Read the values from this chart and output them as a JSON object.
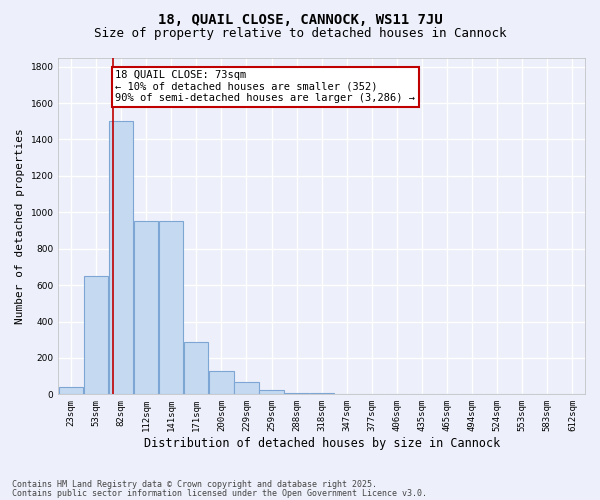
{
  "title1": "18, QUAIL CLOSE, CANNOCK, WS11 7JU",
  "title2": "Size of property relative to detached houses in Cannock",
  "xlabel": "Distribution of detached houses by size in Cannock",
  "ylabel": "Number of detached properties",
  "bins": [
    "23sqm",
    "53sqm",
    "82sqm",
    "112sqm",
    "141sqm",
    "171sqm",
    "200sqm",
    "229sqm",
    "259sqm",
    "288sqm",
    "318sqm",
    "347sqm",
    "377sqm",
    "406sqm",
    "435sqm",
    "465sqm",
    "494sqm",
    "524sqm",
    "553sqm",
    "583sqm",
    "612sqm"
  ],
  "values": [
    40,
    650,
    1500,
    950,
    950,
    290,
    130,
    65,
    25,
    10,
    5,
    2,
    1,
    0,
    0,
    0,
    0,
    0,
    0,
    0,
    0
  ],
  "bar_color": "#c5d9f1",
  "bar_edge_color": "#7da6d4",
  "bar_linewidth": 0.8,
  "vline_x": 1.67,
  "vline_color": "#c00000",
  "annotation_line1": "18 QUAIL CLOSE: 73sqm",
  "annotation_line2": "← 10% of detached houses are smaller (352)",
  "annotation_line3": "90% of semi-detached houses are larger (3,286) →",
  "annotation_box_color": "#ffffff",
  "annotation_box_edge": "#c00000",
  "ylim": [
    0,
    1850
  ],
  "yticks": [
    0,
    200,
    400,
    600,
    800,
    1000,
    1200,
    1400,
    1600,
    1800
  ],
  "background_color": "#edf0fa",
  "grid_color": "#ffffff",
  "footer1": "Contains HM Land Registry data © Crown copyright and database right 2025.",
  "footer2": "Contains public sector information licensed under the Open Government Licence v3.0.",
  "title1_fontsize": 10,
  "title2_fontsize": 9,
  "tick_fontsize": 6.5,
  "xlabel_fontsize": 8.5,
  "ylabel_fontsize": 8,
  "footer_fontsize": 6,
  "ann_fontsize": 7.5
}
